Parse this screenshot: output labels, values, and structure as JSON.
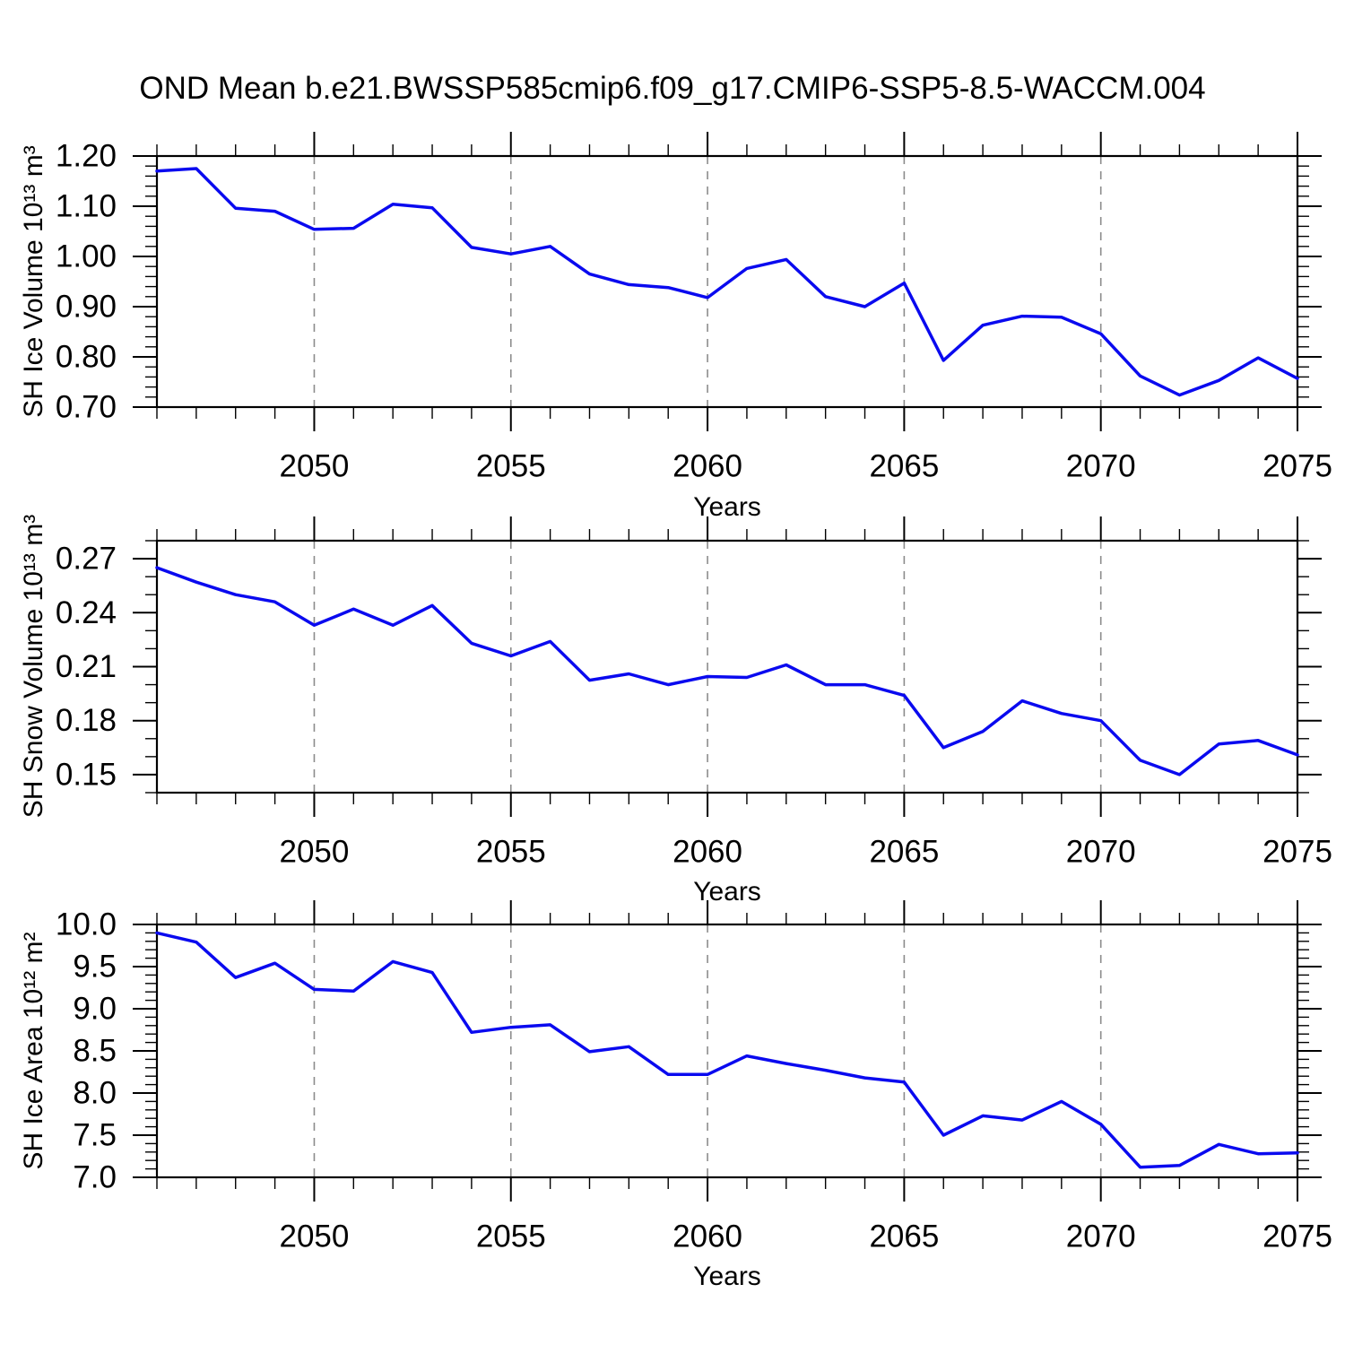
{
  "figure": {
    "title": "OND Mean b.e21.BWSSP585cmip6.f09_g17.CMIP6-SSP5-8.5-WACCM.004",
    "line_color": "#0a0aef",
    "grid_color": "#8c8c8c",
    "axis_color": "#000000",
    "background_color": "#ffffff"
  },
  "chart_data": [
    {
      "type": "line",
      "name": "sh-ice-volume",
      "ylabel": "SH Ice Volume 10¹³ m³",
      "xlabel": "Years",
      "x": [
        2046,
        2047,
        2048,
        2049,
        2050,
        2051,
        2052,
        2053,
        2054,
        2055,
        2056,
        2057,
        2058,
        2059,
        2060,
        2061,
        2062,
        2063,
        2064,
        2065,
        2066,
        2067,
        2068,
        2069,
        2070,
        2071,
        2072,
        2073,
        2074,
        2075
      ],
      "values": [
        1.17,
        1.175,
        1.096,
        1.09,
        1.054,
        1.056,
        1.104,
        1.097,
        1.018,
        1.005,
        1.02,
        0.965,
        0.944,
        0.938,
        0.918,
        0.976,
        0.994,
        0.92,
        0.9,
        0.947,
        0.793,
        0.863,
        0.881,
        0.879,
        0.846,
        0.762,
        0.724,
        0.753,
        0.798,
        0.757
      ],
      "xlim": [
        2046,
        2075
      ],
      "ylim": [
        0.7,
        1.2
      ],
      "xticks": [
        2050,
        2055,
        2060,
        2065,
        2070,
        2075
      ],
      "xtick_labels": [
        "2050",
        "2055",
        "2060",
        "2065",
        "2070",
        "2075"
      ],
      "x_minor_step": 1,
      "yticks": [
        0.7,
        0.8,
        0.9,
        1.0,
        1.1,
        1.2
      ],
      "ytick_labels": [
        "0.70",
        "0.80",
        "0.90",
        "1.00",
        "1.10",
        "1.20"
      ],
      "y_minor_step": 0.02,
      "grid_xticks": [
        2050,
        2055,
        2060,
        2065,
        2070
      ],
      "grid_style": "dashed"
    },
    {
      "type": "line",
      "name": "sh-snow-volume",
      "ylabel": "SH Snow Volume 10¹³ m³",
      "xlabel": "Years",
      "x": [
        2046,
        2047,
        2048,
        2049,
        2050,
        2051,
        2052,
        2053,
        2054,
        2055,
        2056,
        2057,
        2058,
        2059,
        2060,
        2061,
        2062,
        2063,
        2064,
        2065,
        2066,
        2067,
        2068,
        2069,
        2070,
        2071,
        2072,
        2073,
        2074,
        2075
      ],
      "values": [
        0.265,
        0.257,
        0.25,
        0.246,
        0.233,
        0.242,
        0.233,
        0.244,
        0.223,
        0.216,
        0.224,
        0.2025,
        0.206,
        0.2,
        0.2045,
        0.204,
        0.211,
        0.2,
        0.2,
        0.194,
        0.165,
        0.174,
        0.191,
        0.184,
        0.18,
        0.158,
        0.15,
        0.167,
        0.169,
        0.161
      ],
      "xlim": [
        2046,
        2075
      ],
      "ylim": [
        0.14,
        0.28
      ],
      "xticks": [
        2050,
        2055,
        2060,
        2065,
        2070,
        2075
      ],
      "xtick_labels": [
        "2050",
        "2055",
        "2060",
        "2065",
        "2070",
        "2075"
      ],
      "x_minor_step": 1,
      "yticks": [
        0.15,
        0.18,
        0.21,
        0.24,
        0.27
      ],
      "ytick_labels": [
        "0.15",
        "0.18",
        "0.21",
        "0.24",
        "0.27"
      ],
      "y_minor_step": 0.01,
      "grid_xticks": [
        2050,
        2055,
        2060,
        2065,
        2070
      ],
      "grid_style": "dashed"
    },
    {
      "type": "line",
      "name": "sh-ice-area",
      "ylabel": "SH Ice Area 10¹² m²",
      "xlabel": "Years",
      "x": [
        2046,
        2047,
        2048,
        2049,
        2050,
        2051,
        2052,
        2053,
        2054,
        2055,
        2056,
        2057,
        2058,
        2059,
        2060,
        2061,
        2062,
        2063,
        2064,
        2065,
        2066,
        2067,
        2068,
        2069,
        2070,
        2071,
        2072,
        2073,
        2074,
        2075
      ],
      "values": [
        9.9,
        9.79,
        9.37,
        9.54,
        9.23,
        9.21,
        9.56,
        9.43,
        8.72,
        8.78,
        8.81,
        8.49,
        8.55,
        8.22,
        8.22,
        8.44,
        8.35,
        8.27,
        8.18,
        8.13,
        7.5,
        7.73,
        7.68,
        7.9,
        7.63,
        7.12,
        7.14,
        7.39,
        7.28,
        7.29
      ],
      "xlim": [
        2046,
        2075
      ],
      "ylim": [
        7.0,
        10.0
      ],
      "xticks": [
        2050,
        2055,
        2060,
        2065,
        2070,
        2075
      ],
      "xtick_labels": [
        "2050",
        "2055",
        "2060",
        "2065",
        "2070",
        "2075"
      ],
      "x_minor_step": 1,
      "yticks": [
        7.0,
        7.5,
        8.0,
        8.5,
        9.0,
        9.5,
        10.0
      ],
      "ytick_labels": [
        "7.0",
        "7.5",
        "8.0",
        "8.5",
        "9.0",
        "9.5",
        "10.0"
      ],
      "y_minor_step": 0.1,
      "grid_xticks": [
        2050,
        2055,
        2060,
        2065,
        2070
      ],
      "grid_style": "dashed"
    }
  ]
}
